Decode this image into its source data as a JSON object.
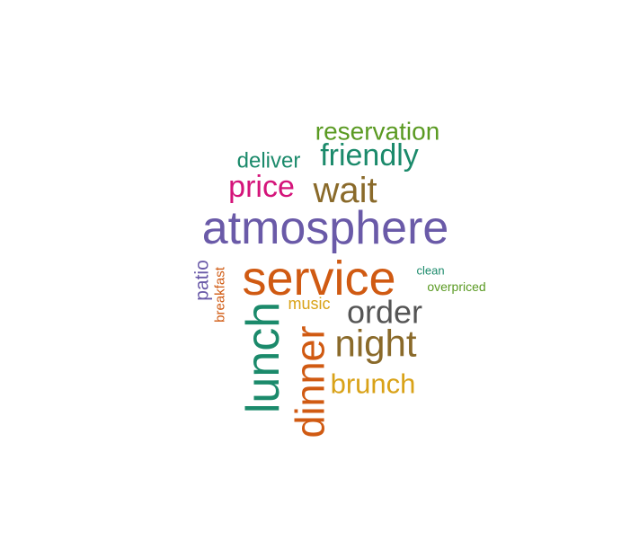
{
  "chart_data": {
    "type": "wordcloud",
    "title": "",
    "words": [
      {
        "text": "atmosphere",
        "weight": 100,
        "color": "#6a5aa8"
      },
      {
        "text": "service",
        "weight": 98,
        "color": "#d05a12"
      },
      {
        "text": "lunch",
        "weight": 80,
        "color": "#1b8a6b"
      },
      {
        "text": "dinner",
        "weight": 72,
        "color": "#d05a12"
      },
      {
        "text": "night",
        "weight": 66,
        "color": "#8a6a2a"
      },
      {
        "text": "wait",
        "weight": 60,
        "color": "#8a6a2a"
      },
      {
        "text": "order",
        "weight": 56,
        "color": "#555555"
      },
      {
        "text": "price",
        "weight": 52,
        "color": "#d4147a"
      },
      {
        "text": "friendly",
        "weight": 48,
        "color": "#1b8a6b"
      },
      {
        "text": "brunch",
        "weight": 46,
        "color": "#d9a218"
      },
      {
        "text": "reservation",
        "weight": 42,
        "color": "#5a9a22"
      },
      {
        "text": "deliver",
        "weight": 38,
        "color": "#1b8a6b"
      },
      {
        "text": "patio",
        "weight": 33,
        "color": "#6a5aa8"
      },
      {
        "text": "music",
        "weight": 30,
        "color": "#d9a218"
      },
      {
        "text": "breakfast",
        "weight": 25,
        "color": "#d05a12"
      },
      {
        "text": "overpriced",
        "weight": 24,
        "color": "#5a9a22"
      },
      {
        "text": "clean",
        "weight": 22,
        "color": "#1b8a6b"
      }
    ]
  }
}
